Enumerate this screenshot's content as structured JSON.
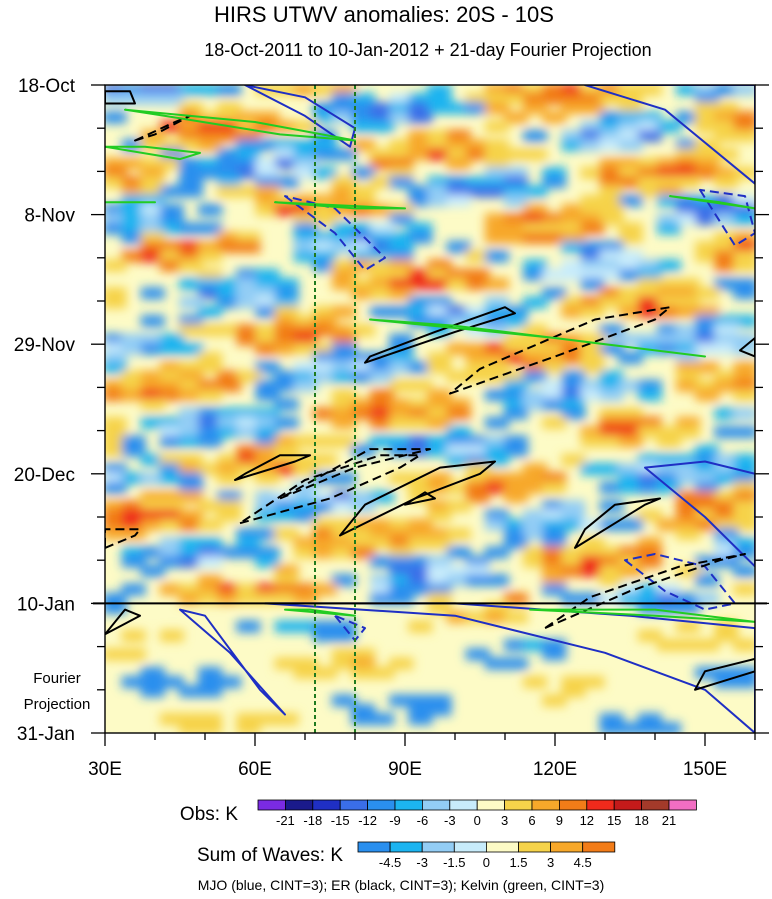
{
  "chart_data": {
    "type": "heatmap",
    "title": "HIRS UTWV anomalies: 20S - 10S",
    "subtitle": "18-Oct-2011 to 10-Jan-2012 + 21-day Fourier Projection",
    "x_axis": {
      "ticks": [
        "30E",
        "60E",
        "90E",
        "120E",
        "150E"
      ],
      "tick_values": [
        30,
        60,
        90,
        120,
        150
      ],
      "range": [
        30,
        160
      ]
    },
    "y_axis": {
      "ticks": [
        "18-Oct",
        "8-Nov",
        "29-Nov",
        "20-Dec",
        "10-Jan",
        "31-Jan"
      ],
      "tick_days": [
        0,
        21,
        42,
        63,
        84,
        105
      ],
      "range_days": [
        0,
        105
      ]
    },
    "projection_start_day": 84,
    "projection_label_line1": "Fourier",
    "projection_label_line2": "Projection",
    "reference_lines_lon": [
      72,
      80
    ],
    "obs_colorbar": {
      "label": "Obs: K",
      "levels": [
        "-21",
        "-18",
        "-15",
        "-12",
        "-9",
        "-6",
        "-3",
        "0",
        "3",
        "6",
        "9",
        "12",
        "15",
        "18",
        "21"
      ],
      "colors": [
        "#7a2be2",
        "#1a1a8c",
        "#1f2fc4",
        "#3a6ee8",
        "#2a8fee",
        "#1cb4f0",
        "#93cdf5",
        "#c8ecfb",
        "#fdfbc6",
        "#f6d34a",
        "#f7a82a",
        "#f27c18",
        "#ef2a1c",
        "#c41a1a",
        "#a33a2a",
        "#f26ec3"
      ]
    },
    "waves_colorbar": {
      "label": "Sum of Waves: K",
      "levels": [
        "-4.5",
        "-3",
        "-1.5",
        "0",
        "1.5",
        "3",
        "4.5"
      ],
      "colors": [
        "#2a8fee",
        "#1cb4f0",
        "#93cdf5",
        "#c8ecfb",
        "#fdfbc6",
        "#f6d34a",
        "#f7a82a",
        "#f27c18"
      ]
    },
    "legend_note": "MJO (blue, CINT=3); ER (black, CINT=3); Kelvin (green, CINT=3)",
    "wave_contours": [
      {
        "wave": "MJO",
        "color": "#1f2fc4",
        "sign": "pos",
        "points": [
          [
            58,
            0
          ],
          [
            70,
            5
          ],
          [
            79,
            10
          ],
          [
            80,
            7
          ],
          [
            70,
            2
          ]
        ]
      },
      {
        "wave": "MJO",
        "color": "#1f2fc4",
        "sign": "pos",
        "points": [
          [
            126,
            0
          ],
          [
            142,
            4
          ],
          [
            160,
            16
          ],
          [
            160,
            0
          ]
        ]
      },
      {
        "wave": "MJO",
        "color": "#1f2fc4",
        "sign": "neg",
        "points": [
          [
            66,
            18
          ],
          [
            76,
            24
          ],
          [
            82,
            30
          ],
          [
            86,
            28
          ],
          [
            76,
            20
          ]
        ]
      },
      {
        "wave": "MJO",
        "color": "#1f2fc4",
        "sign": "neg",
        "points": [
          [
            149,
            17
          ],
          [
            156,
            26
          ],
          [
            160,
            24
          ],
          [
            158,
            18
          ]
        ]
      },
      {
        "wave": "MJO",
        "color": "#1f2fc4",
        "sign": "pos",
        "points": [
          [
            138,
            62
          ],
          [
            150,
            70
          ],
          [
            160,
            78
          ],
          [
            160,
            63
          ],
          [
            150,
            61
          ]
        ]
      },
      {
        "wave": "MJO",
        "color": "#1f2fc4",
        "sign": "neg",
        "points": [
          [
            134,
            77
          ],
          [
            142,
            82
          ],
          [
            150,
            85
          ],
          [
            156,
            84
          ],
          [
            150,
            78
          ],
          [
            140,
            76
          ]
        ]
      },
      {
        "wave": "MJO",
        "color": "#1f2fc4",
        "sign": "pos",
        "points": [
          [
            45,
            85
          ],
          [
            55,
            92
          ],
          [
            66,
            102
          ],
          [
            61,
            98
          ],
          [
            50,
            86
          ]
        ]
      },
      {
        "wave": "MJO",
        "color": "#1f2fc4",
        "sign": "pos",
        "points": [
          [
            62,
            84
          ],
          [
            100,
            86
          ],
          [
            130,
            92
          ],
          [
            150,
            98
          ],
          [
            160,
            105
          ],
          [
            160,
            88
          ],
          [
            135,
            86
          ],
          [
            100,
            84
          ]
        ]
      },
      {
        "wave": "MJO",
        "color": "#1f2fc4",
        "sign": "neg",
        "points": [
          [
            76,
            86
          ],
          [
            80,
            90
          ],
          [
            82,
            88
          ]
        ]
      },
      {
        "wave": "ER",
        "color": "#000000",
        "sign": "pos",
        "points": [
          [
            30,
            3
          ],
          [
            36,
            3
          ],
          [
            35,
            1
          ],
          [
            30,
            1
          ]
        ]
      },
      {
        "wave": "ER",
        "color": "#000000",
        "sign": "neg",
        "points": [
          [
            36,
            9
          ],
          [
            44,
            6
          ],
          [
            47,
            5
          ],
          [
            40,
            8
          ]
        ]
      },
      {
        "wave": "ER",
        "color": "#000000",
        "sign": "pos",
        "points": [
          [
            82,
            45
          ],
          [
            100,
            40
          ],
          [
            112,
            37
          ],
          [
            110,
            36
          ],
          [
            96,
            40
          ],
          [
            83,
            44
          ]
        ]
      },
      {
        "wave": "ER",
        "color": "#000000",
        "sign": "neg",
        "points": [
          [
            99,
            50
          ],
          [
            120,
            44
          ],
          [
            140,
            38
          ],
          [
            143,
            36
          ],
          [
            128,
            38
          ],
          [
            105,
            46
          ]
        ]
      },
      {
        "wave": "ER",
        "color": "#000000",
        "sign": "pos",
        "points": [
          [
            157,
            43
          ],
          [
            160,
            41
          ],
          [
            160,
            44
          ]
        ]
      },
      {
        "wave": "ER",
        "color": "#000000",
        "sign": "neg",
        "points": [
          [
            30,
            75
          ],
          [
            36,
            73
          ],
          [
            37,
            72
          ],
          [
            30,
            72
          ]
        ]
      },
      {
        "wave": "ER",
        "color": "#000000",
        "sign": "pos",
        "points": [
          [
            56,
            64
          ],
          [
            68,
            61
          ],
          [
            71,
            60
          ],
          [
            65,
            60
          ],
          [
            58,
            63
          ]
        ]
      },
      {
        "wave": "ER",
        "color": "#000000",
        "sign": "neg",
        "points": [
          [
            57,
            71
          ],
          [
            75,
            67
          ],
          [
            89,
            62
          ],
          [
            93,
            60
          ],
          [
            85,
            60
          ],
          [
            70,
            64
          ]
        ]
      },
      {
        "wave": "ER",
        "color": "#000000",
        "sign": "neg",
        "points": [
          [
            65,
            67
          ],
          [
            80,
            62
          ],
          [
            95,
            59
          ],
          [
            83,
            59
          ]
        ]
      },
      {
        "wave": "ER",
        "color": "#000000",
        "sign": "pos",
        "points": [
          [
            77,
            73
          ],
          [
            92,
            67
          ],
          [
            105,
            63
          ],
          [
            108,
            61
          ],
          [
            97,
            62
          ],
          [
            82,
            68
          ]
        ]
      },
      {
        "wave": "ER",
        "color": "#000000",
        "sign": "pos",
        "points": [
          [
            90,
            68
          ],
          [
            96,
            67
          ],
          [
            94,
            66
          ]
        ]
      },
      {
        "wave": "ER",
        "color": "#000000",
        "sign": "pos",
        "points": [
          [
            124,
            75
          ],
          [
            138,
            68
          ],
          [
            141,
            67
          ],
          [
            132,
            68
          ],
          [
            126,
            72
          ]
        ]
      },
      {
        "wave": "ER",
        "color": "#000000",
        "sign": "neg",
        "points": [
          [
            118,
            88
          ],
          [
            135,
            82
          ],
          [
            153,
            77
          ],
          [
            158,
            76
          ],
          [
            145,
            78
          ],
          [
            127,
            83
          ]
        ]
      },
      {
        "wave": "ER",
        "color": "#000000",
        "sign": "pos",
        "points": [
          [
            30,
            89
          ],
          [
            37,
            86
          ],
          [
            34,
            85
          ]
        ]
      },
      {
        "wave": "ER",
        "color": "#000000",
        "sign": "pos",
        "points": [
          [
            148,
            98
          ],
          [
            160,
            95
          ],
          [
            160,
            93
          ],
          [
            150,
            95
          ]
        ]
      },
      {
        "wave": "K",
        "color": "#22cc22",
        "sign": "pos",
        "points": [
          [
            34,
            4
          ],
          [
            60,
            6
          ],
          [
            80,
            9
          ],
          [
            65,
            8
          ],
          [
            42,
            5
          ]
        ]
      },
      {
        "wave": "K",
        "color": "#22cc22",
        "sign": "pos",
        "points": [
          [
            30,
            10
          ],
          [
            45,
            12
          ],
          [
            49,
            11
          ],
          [
            38,
            10
          ]
        ]
      },
      {
        "wave": "K",
        "color": "#22cc22",
        "sign": "pos",
        "points": [
          [
            30,
            19
          ],
          [
            40,
            19
          ],
          [
            35,
            19
          ]
        ]
      },
      {
        "wave": "K",
        "color": "#22cc22",
        "sign": "pos",
        "points": [
          [
            64,
            19
          ],
          [
            90,
            20
          ],
          [
            80,
            20
          ]
        ]
      },
      {
        "wave": "K",
        "color": "#22cc22",
        "sign": "pos",
        "points": [
          [
            143,
            18
          ],
          [
            160,
            20
          ],
          [
            153,
            19
          ]
        ]
      },
      {
        "wave": "K",
        "color": "#22cc22",
        "sign": "pos",
        "points": [
          [
            83,
            38
          ],
          [
            120,
            41
          ],
          [
            150,
            44
          ],
          [
            130,
            42
          ],
          [
            100,
            39
          ]
        ]
      },
      {
        "wave": "K",
        "color": "#22cc22",
        "sign": "pos",
        "points": [
          [
            66,
            85
          ],
          [
            80,
            86
          ],
          [
            71,
            85
          ]
        ]
      },
      {
        "wave": "K",
        "color": "#22cc22",
        "sign": "pos",
        "points": [
          [
            115,
            85
          ],
          [
            140,
            86
          ],
          [
            160,
            87
          ],
          [
            140,
            85
          ]
        ]
      }
    ]
  }
}
